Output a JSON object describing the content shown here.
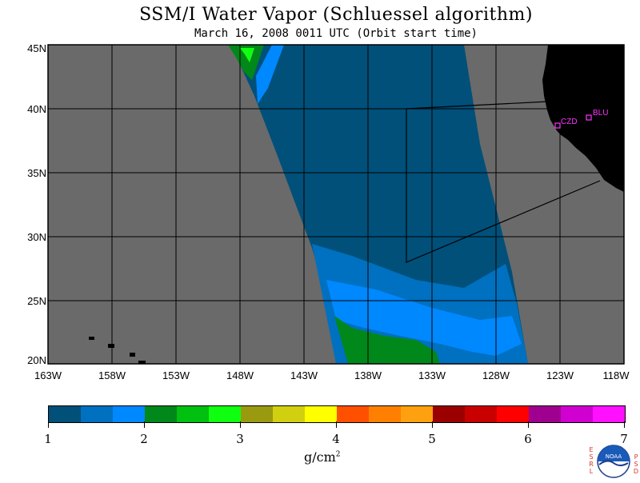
{
  "title": "SSM/I Water Vapor (Schluessel algorithm)",
  "subtitle": "March 16, 2008  0011 UTC  (Orbit start time)",
  "lat_labels": [
    "45N",
    "40N",
    "35N",
    "30N",
    "25N",
    "20N"
  ],
  "lon_labels": [
    "163W",
    "158W",
    "153W",
    "148W",
    "143W",
    "138W",
    "133W",
    "128W",
    "123W",
    "118W"
  ],
  "colorbar": {
    "colors": [
      "#00507a",
      "#0070c0",
      "#0088ff",
      "#00881a",
      "#00c010",
      "#10ff10",
      "#9a9a10",
      "#d0d010",
      "#ffff00",
      "#ff5000",
      "#ff8000",
      "#ffa010",
      "#9a0000",
      "#c80000",
      "#ff0000",
      "#a00090",
      "#d000d0",
      "#ff10ff"
    ],
    "tick_labels": [
      "1",
      "2",
      "3",
      "4",
      "5",
      "6",
      "7"
    ],
    "units": "g/cm",
    "units_sup": "2"
  },
  "stations": [
    {
      "label": "CZD"
    },
    {
      "label": "BLU"
    }
  ],
  "colors": {
    "background": "#6a6a6a",
    "land": "#000000",
    "grid": "#000000",
    "station": "#ff33ff"
  },
  "logo": {
    "left_letters": [
      "E",
      "S",
      "R",
      "L"
    ],
    "right_letters": [
      "P",
      "S",
      "D"
    ],
    "badge": "NOAA"
  }
}
